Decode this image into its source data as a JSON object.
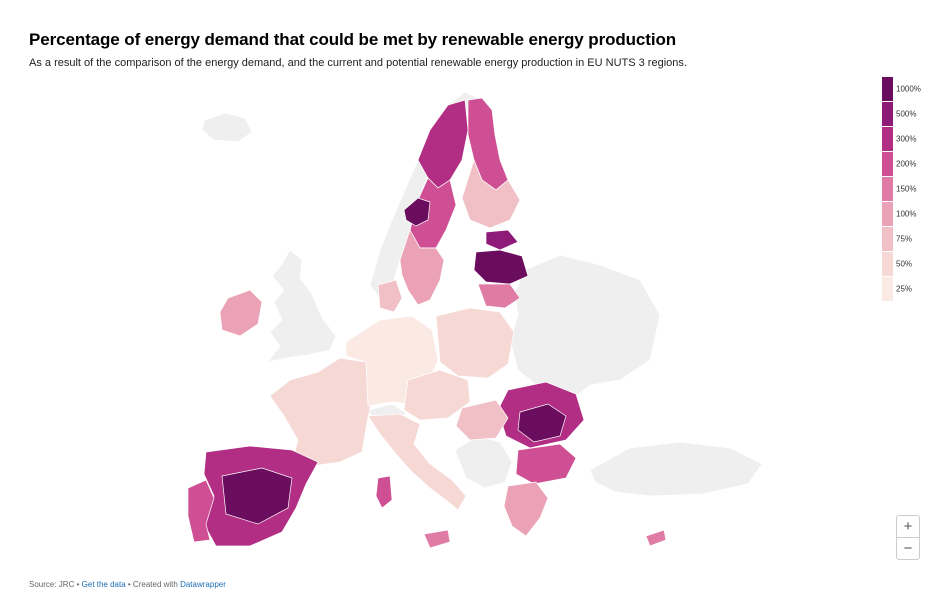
{
  "chart": {
    "title": "Percentage of energy demand that could be met by renewable energy production",
    "subtitle": "As a result of the comparison of the energy demand, and the current and potential renewable energy production in EU NUTS 3 regions."
  },
  "legend": {
    "labels": [
      "1000%",
      "500%",
      "300%",
      "200%",
      "150%",
      "100%",
      "75%",
      "50%",
      "25%"
    ],
    "colors": [
      "#6b0d5e",
      "#8e1b78",
      "#b22d84",
      "#cf4f94",
      "#e07ba6",
      "#eba2b6",
      "#f1c0c6",
      "#f6d8d4",
      "#faeae3"
    ]
  },
  "map": {
    "non_eu_color": "#efefef",
    "regions": [
      {
        "name": "Iceland",
        "category": "none"
      },
      {
        "name": "Norway",
        "category": "none"
      },
      {
        "name": "United Kingdom",
        "category": "none"
      },
      {
        "name": "Russia-Belarus-Ukraine",
        "category": "none"
      },
      {
        "name": "Turkey",
        "category": "none"
      },
      {
        "name": "Balkans",
        "category": "none"
      },
      {
        "name": "Switzerland",
        "category": "none"
      },
      {
        "name": "Sweden North",
        "category": "300%"
      },
      {
        "name": "Sweden Central",
        "category": "200%"
      },
      {
        "name": "Sweden Jamtland",
        "category": "1000%"
      },
      {
        "name": "Sweden South",
        "category": "100%"
      },
      {
        "name": "Finland North",
        "category": "200%"
      },
      {
        "name": "Finland South",
        "category": "75%"
      },
      {
        "name": "Estonia",
        "category": "500%"
      },
      {
        "name": "Latvia",
        "category": "1000%"
      },
      {
        "name": "Lithuania",
        "category": "150%"
      },
      {
        "name": "Ireland",
        "category": "100%"
      },
      {
        "name": "Denmark",
        "category": "75%"
      },
      {
        "name": "France",
        "category": "50%"
      },
      {
        "name": "Benelux-Germany",
        "category": "25%"
      },
      {
        "name": "Poland",
        "category": "50%"
      },
      {
        "name": "Czechia-Austria",
        "category": "50%"
      },
      {
        "name": "Romania",
        "category": "300%"
      },
      {
        "name": "Romania Central",
        "category": "1000%"
      },
      {
        "name": "Bulgaria",
        "category": "200%"
      },
      {
        "name": "Hungary",
        "category": "75%"
      },
      {
        "name": "Spain",
        "category": "300%"
      },
      {
        "name": "Spain Central",
        "category": "1000%"
      },
      {
        "name": "Portugal",
        "category": "200%"
      },
      {
        "name": "Italy",
        "category": "50%"
      },
      {
        "name": "Sardinia",
        "category": "200%"
      },
      {
        "name": "Sicily",
        "category": "150%"
      },
      {
        "name": "Greece",
        "category": "100%"
      },
      {
        "name": "Cyprus",
        "category": "150%"
      }
    ]
  },
  "controls": {
    "zoom_in": "+",
    "zoom_out": "−"
  },
  "footer": {
    "source": "Source: JRC",
    "separator": "•",
    "get_data": "Get the data",
    "created_with": "• Created with",
    "tool": "Datawrapper"
  }
}
